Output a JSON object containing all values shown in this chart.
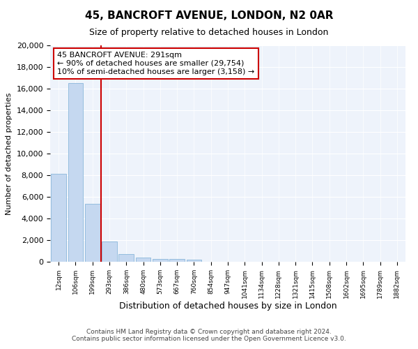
{
  "title": "45, BANCROFT AVENUE, LONDON, N2 0AR",
  "subtitle": "Size of property relative to detached houses in London",
  "xlabel": "Distribution of detached houses by size in London",
  "ylabel": "Number of detached properties",
  "bar_color": "#c5d8f0",
  "bar_edge_color": "#7aadd4",
  "property_line_color": "#cc0000",
  "property_label": "45 BANCROFT AVENUE: 291sqm",
  "annotation_line1": "← 90% of detached houses are smaller (29,754)",
  "annotation_line2": "10% of semi-detached houses are larger (3,158) →",
  "annotation_box_color": "#cc0000",
  "categories": [
    "12sqm",
    "106sqm",
    "199sqm",
    "293sqm",
    "386sqm",
    "480sqm",
    "573sqm",
    "667sqm",
    "760sqm",
    "854sqm",
    "947sqm",
    "1041sqm",
    "1134sqm",
    "1228sqm",
    "1321sqm",
    "1415sqm",
    "1508sqm",
    "1602sqm",
    "1695sqm",
    "1789sqm",
    "1882sqm"
  ],
  "values": [
    8100,
    16500,
    5350,
    1900,
    700,
    370,
    280,
    230,
    190,
    0,
    0,
    0,
    0,
    0,
    0,
    0,
    0,
    0,
    0,
    0,
    0
  ],
  "ylim": [
    0,
    20000
  ],
  "yticks": [
    0,
    2000,
    4000,
    6000,
    8000,
    10000,
    12000,
    14000,
    16000,
    18000,
    20000
  ],
  "vline_x_index": 2.5,
  "footer_line1": "Contains HM Land Registry data © Crown copyright and database right 2024.",
  "footer_line2": "Contains public sector information licensed under the Open Government Licence v3.0.",
  "background_color": "#ffffff",
  "plot_bg_color": "#eef3fb",
  "grid_color": "#ffffff"
}
